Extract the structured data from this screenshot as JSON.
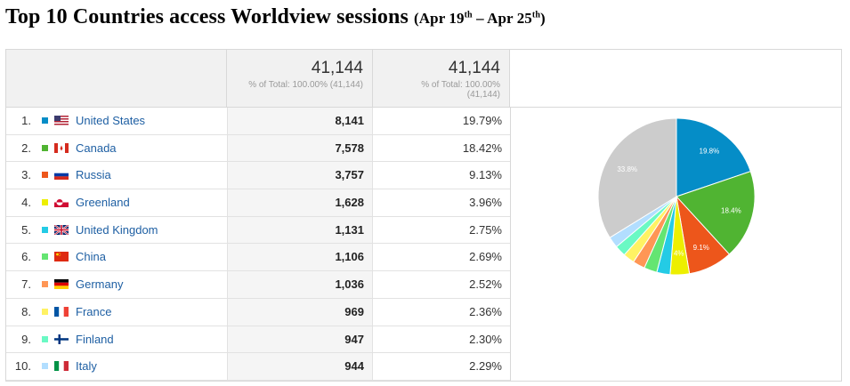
{
  "title": {
    "main": "Top 10 Countries access Worldview sessions",
    "range_open": "(Apr 19",
    "sup1": "th",
    "range_mid": " – Apr 25",
    "sup2": "th",
    "range_close": ")"
  },
  "totals": {
    "sessions_value": "41,144",
    "sessions_note": "% of Total: 100.00% (41,144)",
    "percent_value": "41,144",
    "percent_note_line1": "% of Total: 100.00%",
    "percent_note_line2": "(41,144)"
  },
  "rows": [
    {
      "rank": "1.",
      "country": "United States",
      "sessions": "8,141",
      "percent": "19.79%",
      "color": "#058dc7",
      "flag": "us-flag-icon"
    },
    {
      "rank": "2.",
      "country": "Canada",
      "sessions": "7,578",
      "percent": "18.42%",
      "color": "#50b432",
      "flag": "canada-flag-icon"
    },
    {
      "rank": "3.",
      "country": "Russia",
      "sessions": "3,757",
      "percent": "9.13%",
      "color": "#ed561b",
      "flag": "russia-flag-icon"
    },
    {
      "rank": "4.",
      "country": "Greenland",
      "sessions": "1,628",
      "percent": "3.96%",
      "color": "#edef00",
      "flag": "greenland-flag-icon"
    },
    {
      "rank": "5.",
      "country": "United Kingdom",
      "sessions": "1,131",
      "percent": "2.75%",
      "color": "#24cbe5",
      "flag": "uk-flag-icon"
    },
    {
      "rank": "6.",
      "country": "China",
      "sessions": "1,106",
      "percent": "2.69%",
      "color": "#64e572",
      "flag": "china-flag-icon"
    },
    {
      "rank": "7.",
      "country": "Germany",
      "sessions": "1,036",
      "percent": "2.52%",
      "color": "#ff9655",
      "flag": "germany-flag-icon"
    },
    {
      "rank": "8.",
      "country": "France",
      "sessions": "969",
      "percent": "2.36%",
      "color": "#fff263",
      "flag": "france-flag-icon"
    },
    {
      "rank": "9.",
      "country": "Finland",
      "sessions": "947",
      "percent": "2.30%",
      "color": "#6af9c4",
      "flag": "finland-flag-icon"
    },
    {
      "rank": "10.",
      "country": "Italy",
      "sessions": "944",
      "percent": "2.29%",
      "color": "#b2deff",
      "flag": "italy-flag-icon"
    }
  ],
  "chart_data": {
    "type": "pie",
    "slices": [
      {
        "label": "United States",
        "value": 19.79,
        "color": "#058dc7",
        "data_label": "19.8%"
      },
      {
        "label": "Canada",
        "value": 18.42,
        "color": "#50b432",
        "data_label": "18.4%"
      },
      {
        "label": "Russia",
        "value": 9.13,
        "color": "#ed561b",
        "data_label": "9.1%"
      },
      {
        "label": "Greenland",
        "value": 3.96,
        "color": "#edef00",
        "data_label": "4%"
      },
      {
        "label": "United Kingdom",
        "value": 2.75,
        "color": "#24cbe5",
        "data_label": ""
      },
      {
        "label": "China",
        "value": 2.69,
        "color": "#64e572",
        "data_label": ""
      },
      {
        "label": "Germany",
        "value": 2.52,
        "color": "#ff9655",
        "data_label": ""
      },
      {
        "label": "France",
        "value": 2.36,
        "color": "#fff263",
        "data_label": ""
      },
      {
        "label": "Finland",
        "value": 2.3,
        "color": "#6af9c4",
        "data_label": ""
      },
      {
        "label": "Italy",
        "value": 2.29,
        "color": "#b2deff",
        "data_label": ""
      },
      {
        "label": "",
        "value": 33.8,
        "color": "#cccccc",
        "data_label": "33.8%"
      }
    ]
  }
}
